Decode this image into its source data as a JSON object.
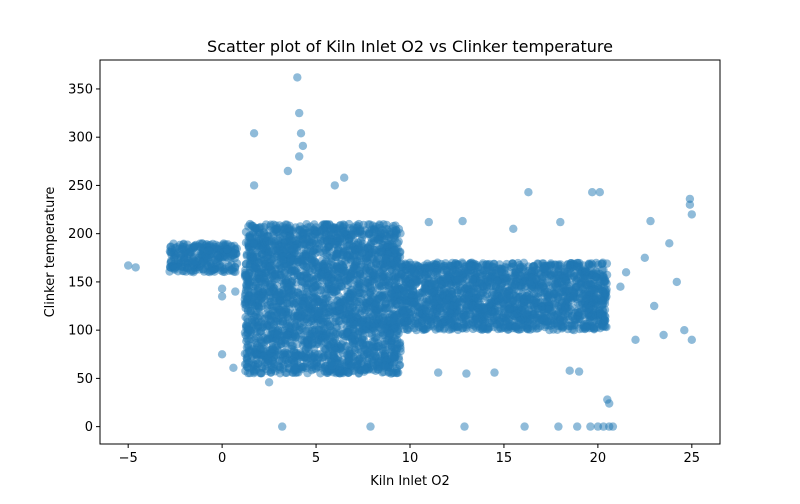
{
  "chart_data": {
    "type": "scatter",
    "title": "Scatter plot of Kiln Inlet O2 vs Clinker temperature",
    "xlabel": "Kiln Inlet O2",
    "ylabel": "Clinker temperature",
    "xlim": [
      -6.5,
      26.5
    ],
    "ylim": [
      -18,
      380
    ],
    "x_ticks": [
      -5,
      0,
      5,
      10,
      15,
      20,
      25
    ],
    "y_ticks": [
      0,
      50,
      100,
      150,
      200,
      250,
      300,
      350
    ],
    "grid": false,
    "point_color": "#1f77b4",
    "point_alpha": 0.5,
    "dense_regions": [
      {
        "x_range": [
          1.2,
          9.5
        ],
        "y_range": [
          55,
          210
        ]
      },
      {
        "x_range": [
          9.5,
          20.5
        ],
        "y_range": [
          100,
          170
        ]
      },
      {
        "x_range": [
          -2.8,
          0.8
        ],
        "y_range": [
          160,
          190
        ]
      }
    ],
    "points": [
      {
        "x": -5.0,
        "y": 167
      },
      {
        "x": -4.6,
        "y": 165
      },
      {
        "x": -2.5,
        "y": 185
      },
      {
        "x": -2.2,
        "y": 178
      },
      {
        "x": -1.8,
        "y": 172
      },
      {
        "x": -1.2,
        "y": 182
      },
      {
        "x": -0.8,
        "y": 175
      },
      {
        "x": -0.3,
        "y": 170
      },
      {
        "x": 0.0,
        "y": 143
      },
      {
        "x": 0.0,
        "y": 135
      },
      {
        "x": 0.0,
        "y": 75
      },
      {
        "x": 0.5,
        "y": 168
      },
      {
        "x": 0.7,
        "y": 140
      },
      {
        "x": 0.6,
        "y": 61
      },
      {
        "x": 1.7,
        "y": 304
      },
      {
        "x": 1.7,
        "y": 250
      },
      {
        "x": 2.5,
        "y": 46
      },
      {
        "x": 3.2,
        "y": 0
      },
      {
        "x": 4.0,
        "y": 362
      },
      {
        "x": 4.1,
        "y": 325
      },
      {
        "x": 4.2,
        "y": 304
      },
      {
        "x": 4.3,
        "y": 291
      },
      {
        "x": 4.1,
        "y": 280
      },
      {
        "x": 3.5,
        "y": 265
      },
      {
        "x": 6.5,
        "y": 258
      },
      {
        "x": 6.0,
        "y": 250
      },
      {
        "x": 7.9,
        "y": 0
      },
      {
        "x": 12.9,
        "y": 0
      },
      {
        "x": 16.1,
        "y": 0
      },
      {
        "x": 17.9,
        "y": 0
      },
      {
        "x": 18.9,
        "y": 0
      },
      {
        "x": 19.6,
        "y": 0
      },
      {
        "x": 20.0,
        "y": 0
      },
      {
        "x": 20.3,
        "y": 0
      },
      {
        "x": 20.6,
        "y": 0
      },
      {
        "x": 20.8,
        "y": 0
      },
      {
        "x": 20.5,
        "y": 28
      },
      {
        "x": 20.6,
        "y": 24
      },
      {
        "x": 16.3,
        "y": 243
      },
      {
        "x": 19.7,
        "y": 243
      },
      {
        "x": 20.1,
        "y": 243
      },
      {
        "x": 11.0,
        "y": 212
      },
      {
        "x": 12.8,
        "y": 213
      },
      {
        "x": 15.5,
        "y": 205
      },
      {
        "x": 18.0,
        "y": 212
      },
      {
        "x": 22.8,
        "y": 213
      },
      {
        "x": 24.9,
        "y": 236
      },
      {
        "x": 24.9,
        "y": 230
      },
      {
        "x": 25.0,
        "y": 220
      },
      {
        "x": 25.0,
        "y": 90
      },
      {
        "x": 24.6,
        "y": 100
      },
      {
        "x": 9.0,
        "y": 55
      },
      {
        "x": 11.5,
        "y": 56
      },
      {
        "x": 13.0,
        "y": 55
      },
      {
        "x": 14.5,
        "y": 56
      },
      {
        "x": 18.5,
        "y": 58
      },
      {
        "x": 19.0,
        "y": 57
      },
      {
        "x": 22.0,
        "y": 90
      },
      {
        "x": 23.5,
        "y": 95
      },
      {
        "x": 21.5,
        "y": 160
      },
      {
        "x": 22.5,
        "y": 175
      },
      {
        "x": 23.8,
        "y": 190
      },
      {
        "x": 21.2,
        "y": 145
      },
      {
        "x": 23.0,
        "y": 125
      },
      {
        "x": 24.2,
        "y": 150
      }
    ]
  }
}
